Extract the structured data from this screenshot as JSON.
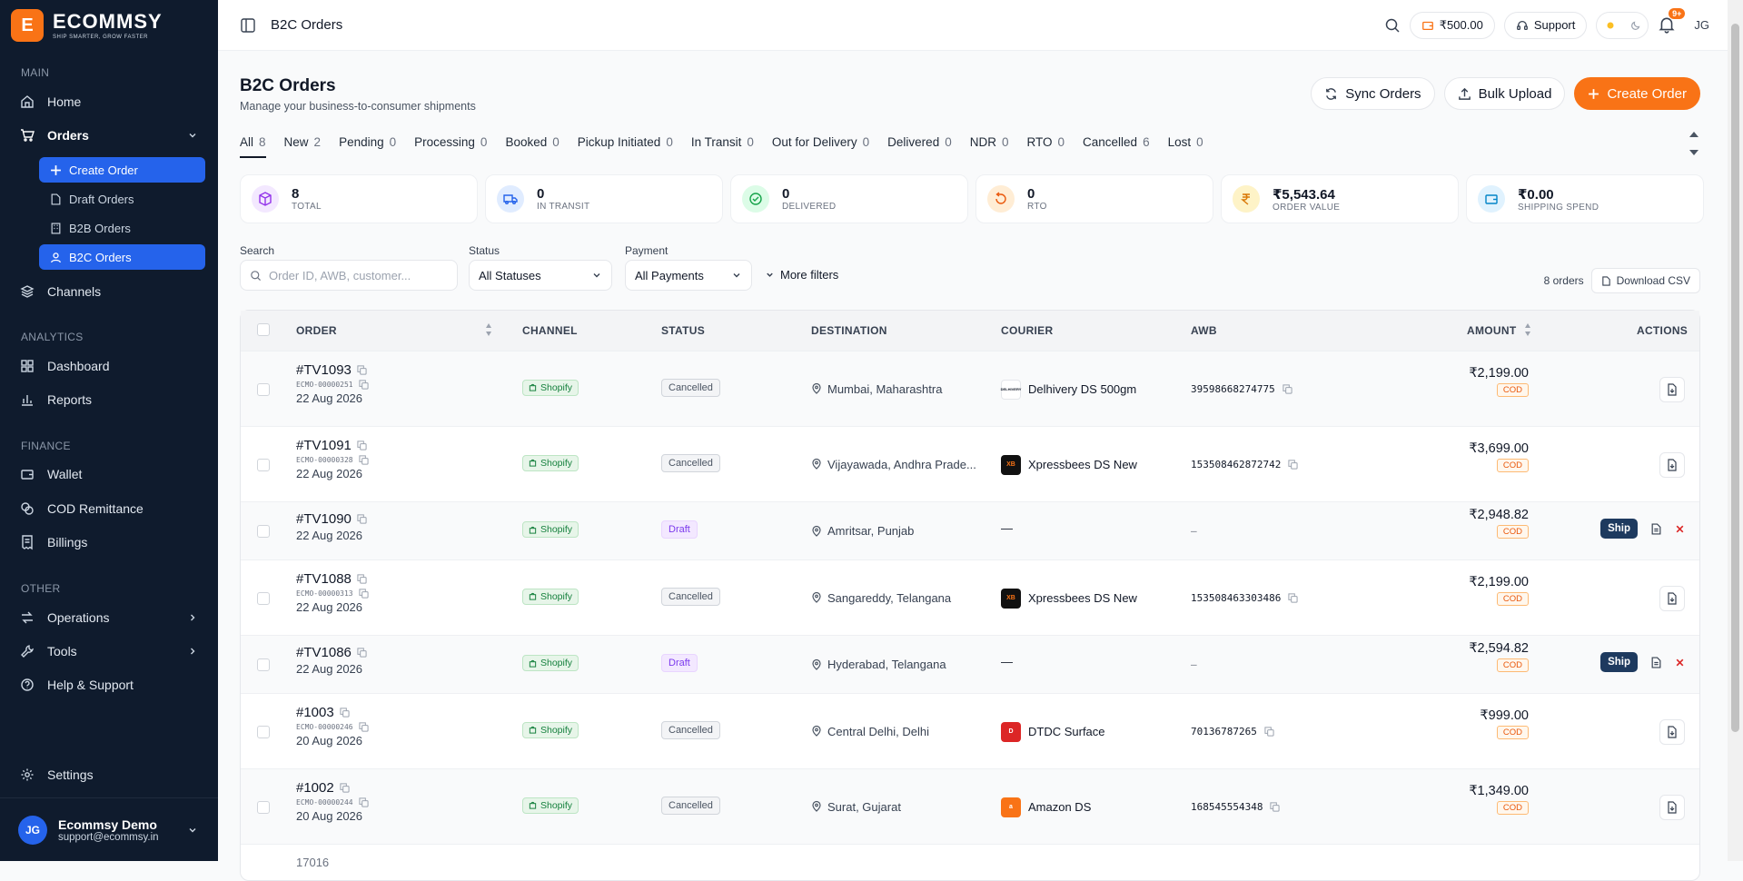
{
  "brand": {
    "name": "ECOMMSY",
    "tagline": "SHIP SMARTER, GROW FASTER",
    "mark": "E"
  },
  "sidebar": {
    "sections": {
      "main": "MAIN",
      "analytics": "ANALYTICS",
      "finance": "FINANCE",
      "other": "OTHER"
    },
    "home": "Home",
    "orders": "Orders",
    "create_order": "Create Order",
    "draft_orders": "Draft Orders",
    "b2b_orders": "B2B Orders",
    "b2c_orders": "B2C Orders",
    "channels": "Channels",
    "dashboard": "Dashboard",
    "reports": "Reports",
    "wallet": "Wallet",
    "cod_remittance": "COD Remittance",
    "billings": "Billings",
    "operations": "Operations",
    "tools": "Tools",
    "help": "Help & Support",
    "settings": "Settings",
    "user": {
      "initials": "JG",
      "name": "Ecommsy Demo",
      "email": "support@ecommsy.in"
    }
  },
  "topbar": {
    "title": "B2C Orders",
    "wallet": "₹500.00",
    "support": "Support",
    "notif": "9+",
    "initials": "JG"
  },
  "page": {
    "title": "B2C Orders",
    "subtitle": "Manage your business-to-consumer shipments",
    "sync": "Sync Orders",
    "bulk": "Bulk Upload",
    "create": "Create Order"
  },
  "tabs": [
    {
      "label": "All",
      "count": "8"
    },
    {
      "label": "New",
      "count": "2"
    },
    {
      "label": "Pending",
      "count": "0"
    },
    {
      "label": "Processing",
      "count": "0"
    },
    {
      "label": "Booked",
      "count": "0"
    },
    {
      "label": "Pickup Initiated",
      "count": "0"
    },
    {
      "label": "In Transit",
      "count": "0"
    },
    {
      "label": "Out for Delivery",
      "count": "0"
    },
    {
      "label": "Delivered",
      "count": "0"
    },
    {
      "label": "NDR",
      "count": "0"
    },
    {
      "label": "RTO",
      "count": "0"
    },
    {
      "label": "Cancelled",
      "count": "6"
    },
    {
      "label": "Lost",
      "count": "0"
    }
  ],
  "stats": [
    {
      "value": "8",
      "label": "TOTAL",
      "icon": "box-icon",
      "bg": "#f3e8ff",
      "fg": "#9333ea"
    },
    {
      "value": "0",
      "label": "IN TRANSIT",
      "icon": "truck-icon",
      "bg": "#e0ecff",
      "fg": "#2563eb"
    },
    {
      "value": "0",
      "label": "DELIVERED",
      "icon": "check-circle-icon",
      "bg": "#dcfce7",
      "fg": "#16a34a"
    },
    {
      "value": "0",
      "label": "RTO",
      "icon": "return-icon",
      "bg": "#ffedd5",
      "fg": "#ea580c"
    },
    {
      "value": "₹5,543.64",
      "label": "ORDER VALUE",
      "icon": "rupee-icon",
      "bg": "#fef3c7",
      "fg": "#d97706"
    },
    {
      "value": "₹0.00",
      "label": "SHIPPING SPEND",
      "icon": "wallet-icon",
      "bg": "#e0f2fe",
      "fg": "#0284c7"
    }
  ],
  "filters": {
    "search_label": "Search",
    "search_placeholder": "Order ID, AWB, customer...",
    "status_label": "Status",
    "status_value": "All Statuses",
    "payment_label": "Payment",
    "payment_value": "All Payments",
    "more": "More filters",
    "count": "8 orders",
    "download": "Download CSV"
  },
  "table": {
    "headers": {
      "order": "ORDER",
      "channel": "CHANNEL",
      "status": "STATUS",
      "destination": "DESTINATION",
      "courier": "COURIER",
      "awb": "AWB",
      "amount": "AMOUNT",
      "actions": "ACTIONS"
    },
    "rows": [
      {
        "id": "#TV1093",
        "sub": "ECMO-00000251",
        "date": "22 Aug 2026",
        "channel": "Shopify",
        "status": "Cancelled",
        "dest": "Mumbai, Maharashtra",
        "courier": "Delhivery DS 500gm",
        "courier_logo": "DELHIVERY",
        "logo_bg": "#ffffff",
        "logo_fg": "#111827",
        "awb": "39598668274775",
        "amount": "₹2,199.00",
        "pay": "COD",
        "draft": false
      },
      {
        "id": "#TV1091",
        "sub": "ECMO-00000328",
        "date": "22 Aug 2026",
        "channel": "Shopify",
        "status": "Cancelled",
        "dest": "Vijayawada, Andhra Prade...",
        "courier": "Xpressbees DS New",
        "courier_logo": "XB",
        "logo_bg": "#111111",
        "logo_fg": "#f97316",
        "awb": "153508462872742",
        "amount": "₹3,699.00",
        "pay": "COD",
        "draft": false
      },
      {
        "id": "#TV1090",
        "sub": "",
        "date": "22 Aug 2026",
        "channel": "Shopify",
        "status": "Draft",
        "dest": "Amritsar, Punjab",
        "courier": "—",
        "courier_logo": "",
        "logo_bg": "",
        "logo_fg": "",
        "awb": "—",
        "amount": "₹2,948.82",
        "pay": "COD",
        "draft": true,
        "ship": "Ship"
      },
      {
        "id": "#TV1088",
        "sub": "ECMO-00000313",
        "date": "22 Aug 2026",
        "channel": "Shopify",
        "status": "Cancelled",
        "dest": "Sangareddy, Telangana",
        "courier": "Xpressbees DS New",
        "courier_logo": "XB",
        "logo_bg": "#111111",
        "logo_fg": "#f97316",
        "awb": "153508463303486",
        "amount": "₹2,199.00",
        "pay": "COD",
        "draft": false
      },
      {
        "id": "#TV1086",
        "sub": "",
        "date": "22 Aug 2026",
        "channel": "Shopify",
        "status": "Draft",
        "dest": "Hyderabad, Telangana",
        "courier": "—",
        "courier_logo": "",
        "logo_bg": "",
        "logo_fg": "",
        "awb": "—",
        "amount": "₹2,594.82",
        "pay": "COD",
        "draft": true,
        "ship": "Ship"
      },
      {
        "id": "#1003",
        "sub": "ECMO-00000246",
        "date": "20 Aug 2026",
        "channel": "Shopify",
        "status": "Cancelled",
        "dest": "Central Delhi, Delhi",
        "courier": "DTDC Surface",
        "courier_logo": "D",
        "logo_bg": "#dc2626",
        "logo_fg": "#ffffff",
        "awb": "70136787265",
        "amount": "₹999.00",
        "pay": "COD",
        "draft": false
      },
      {
        "id": "#1002",
        "sub": "ECMO-00000244",
        "date": "20 Aug 2026",
        "channel": "Shopify",
        "status": "Cancelled",
        "dest": "Surat, Gujarat",
        "courier": "Amazon DS",
        "courier_logo": "a",
        "logo_bg": "#f97316",
        "logo_fg": "#ffffff",
        "awb": "168545554348",
        "amount": "₹1,349.00",
        "pay": "COD",
        "draft": false
      }
    ],
    "partial_row_id": "17016"
  }
}
